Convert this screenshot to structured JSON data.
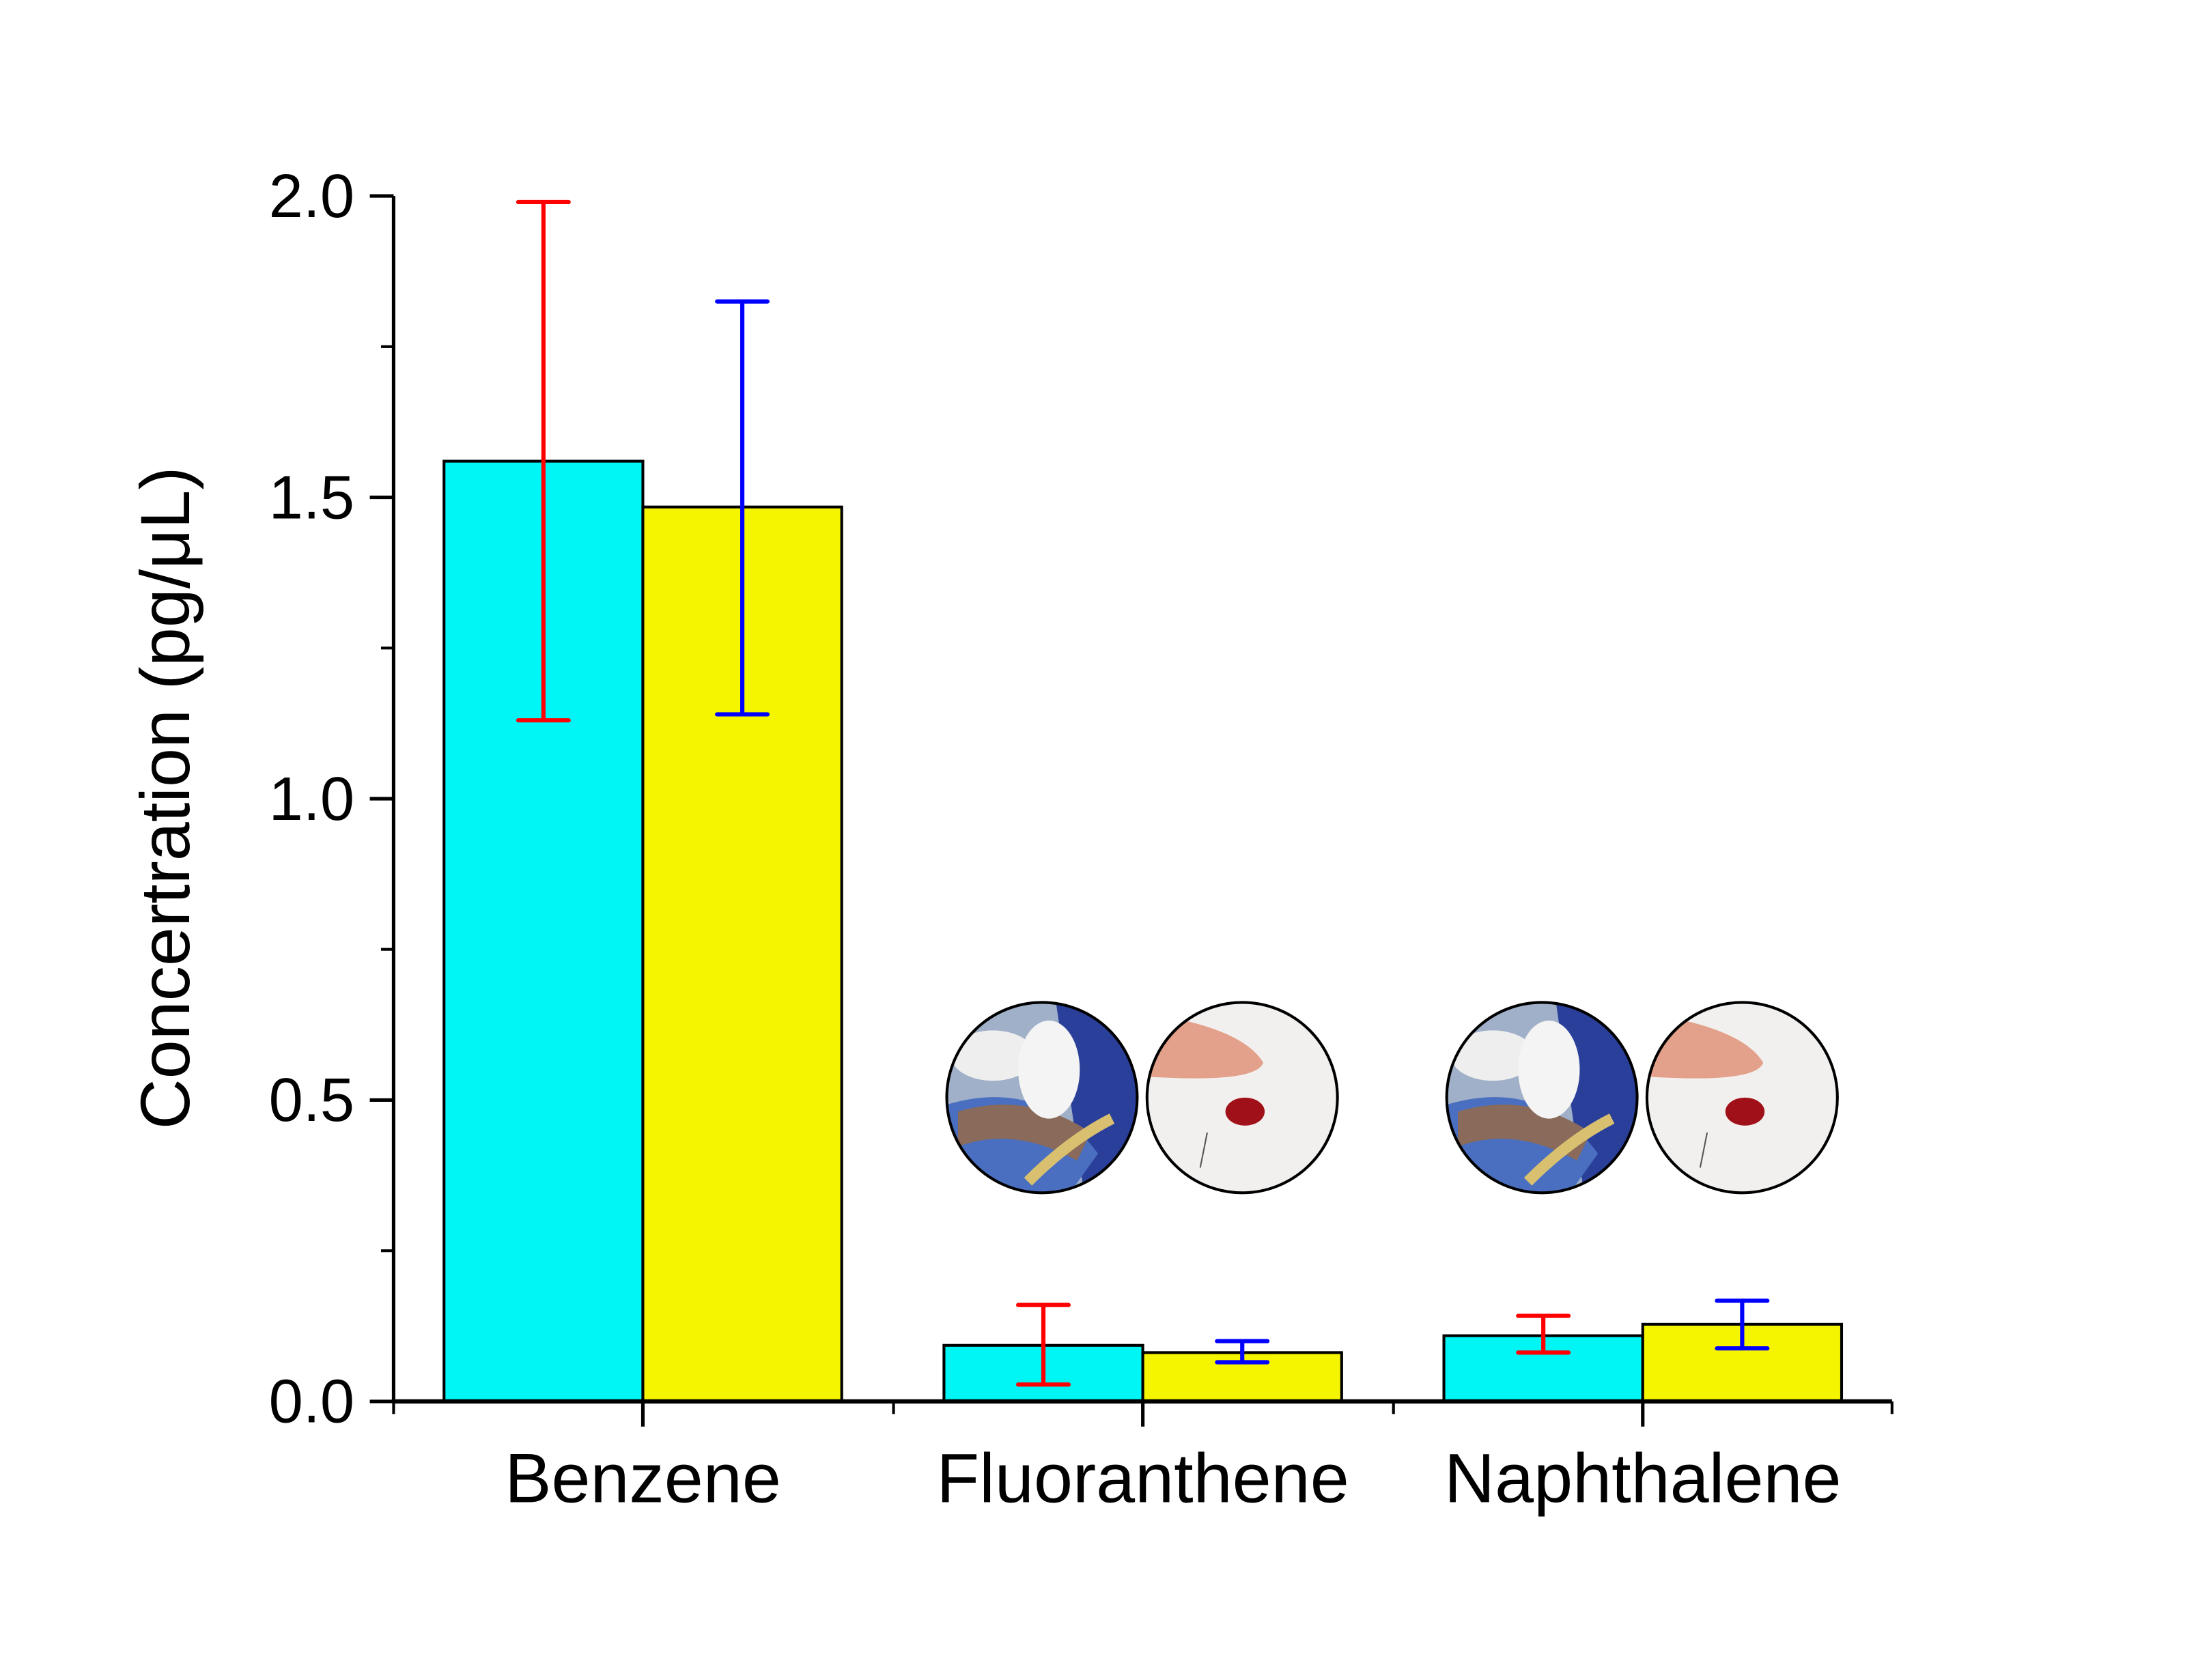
{
  "chart_data": {
    "type": "bar",
    "title": "",
    "xlabel": "",
    "ylabel": "Concertration (pg/μL)",
    "ylim": [
      0,
      2.0
    ],
    "yticks": [
      "0.0",
      "0.5",
      "1.0",
      "1.5",
      "2.0"
    ],
    "categories": [
      "Benzene",
      "Fluoranthene",
      "Naphthalene"
    ],
    "series": [
      {
        "name": "venous blood",
        "color": "#00f5f5",
        "error_color": "#ff0000",
        "values": [
          1.56,
          0.093,
          0.109
        ],
        "err_low": [
          1.13,
          0.028,
          0.081
        ],
        "err_high": [
          1.99,
          0.16,
          0.142
        ]
      },
      {
        "name": "dried blood spot",
        "color": "#f5f500",
        "error_color": "#0000ff",
        "values": [
          1.484,
          0.081,
          0.128
        ],
        "err_low": [
          1.14,
          0.065,
          0.088
        ],
        "err_high": [
          1.825,
          0.1,
          0.167
        ]
      }
    ],
    "grid": false,
    "legend": "none (inset photos above each bar pair)"
  }
}
